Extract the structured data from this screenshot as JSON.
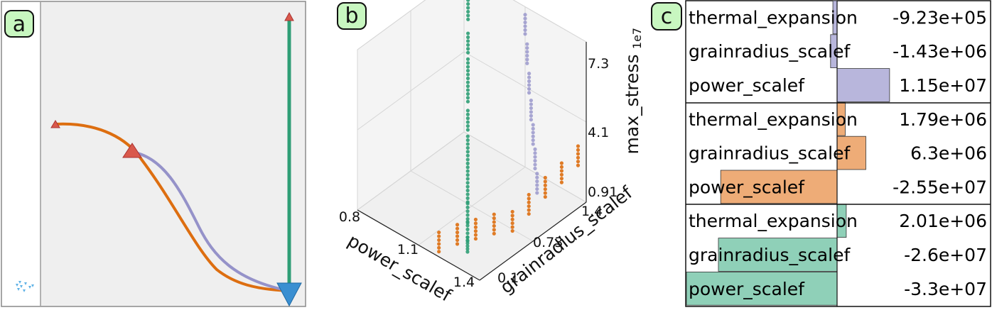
{
  "panel_labels": {
    "a": "a",
    "b": "b",
    "c": "c"
  },
  "colors": {
    "orange": "#dd6e10",
    "purple": "#9592c9",
    "green": "#2f9e76",
    "red": "#d9594c",
    "blue": "#3a8fd1",
    "bar_purple": "#b8b6dc",
    "bar_orange": "#eeac77",
    "bar_green": "#8fd0b8",
    "panel_bg": "#efefef"
  },
  "chart_data": [
    {
      "type": "line",
      "panel": "a",
      "series": [
        {
          "color": "orange",
          "start_marker": "small-red-triangle",
          "end_marker": "blue-down-triangle"
        },
        {
          "color": "purple",
          "start_marker": "large-red-triangle",
          "end_marker": "blue-down-triangle"
        },
        {
          "color": "green",
          "start_marker": "small-red-triangle",
          "end_marker": "blue-down-triangle"
        }
      ]
    },
    {
      "type": "scatter",
      "panel": "b",
      "xlabel": "power_scalef",
      "ylabel": "grainradius_scalef",
      "zlabel": "max_stress",
      "z_multiplier": "1e7",
      "x_ticks": [
        "0.8",
        "1.1",
        "1.4"
      ],
      "y_ticks": [
        "0.1",
        "0.73",
        "1.4"
      ],
      "z_ticks": [
        "0.91",
        "4.1",
        "7.3"
      ],
      "xlim": [
        0.8,
        1.4
      ],
      "ylim": [
        0.1,
        1.4
      ],
      "zlim": [
        0.91,
        7.3
      ],
      "grid": true,
      "series": [
        {
          "color": "green",
          "points": [
            [
              0.82,
              1.4,
              7.0
            ],
            [
              0.86,
              1.3,
              6.3
            ],
            [
              0.9,
              1.2,
              5.4
            ],
            [
              0.94,
              1.1,
              4.8
            ],
            [
              0.98,
              1.0,
              4.3
            ],
            [
              1.02,
              0.9,
              3.6
            ],
            [
              1.06,
              0.8,
              3.0
            ],
            [
              1.1,
              0.7,
              2.5
            ],
            [
              1.14,
              0.6,
              2.0
            ],
            [
              1.18,
              0.5,
              1.6
            ],
            [
              1.22,
              0.4,
              1.3
            ],
            [
              1.26,
              0.3,
              1.1
            ]
          ]
        },
        {
          "color": "purple",
          "points": [
            [
              1.1,
              1.4,
              6.6
            ],
            [
              1.15,
              1.3,
              5.9
            ],
            [
              1.2,
              1.2,
              5.2
            ],
            [
              1.25,
              1.1,
              4.6
            ],
            [
              1.3,
              1.0,
              4.1
            ],
            [
              1.35,
              0.9,
              3.6
            ],
            [
              1.4,
              0.8,
              3.1
            ]
          ]
        },
        {
          "color": "orange",
          "points": [
            [
              1.2,
              0.1,
              1.5
            ],
            [
              1.25,
              0.2,
              1.8
            ],
            [
              1.3,
              0.3,
              2.0
            ],
            [
              1.35,
              0.4,
              2.2
            ],
            [
              1.4,
              0.5,
              2.3
            ],
            [
              1.4,
              0.7,
              2.5
            ],
            [
              1.4,
              0.9,
              2.7
            ],
            [
              1.4,
              1.1,
              2.8
            ],
            [
              1.4,
              1.3,
              3.0
            ]
          ]
        }
      ]
    },
    {
      "type": "bar",
      "panel": "c",
      "groups": [
        {
          "color": "bar_purple",
          "items": [
            {
              "name": "thermal_expansion",
              "label": "-9.23e+05",
              "value": -923000
            },
            {
              "name": "grainradius_scalef",
              "label": "-1.43e+06",
              "value": -1430000
            },
            {
              "name": "power_scalef",
              "label": "1.15e+07",
              "value": 11500000
            }
          ]
        },
        {
          "color": "bar_orange",
          "items": [
            {
              "name": "thermal_expansion",
              "label": "1.79e+06",
              "value": 1790000
            },
            {
              "name": "grainradius_scalef",
              "label": "6.3e+06",
              "value": 6300000
            },
            {
              "name": "power_scalef",
              "label": "-2.55e+07",
              "value": -25500000
            }
          ]
        },
        {
          "color": "bar_green",
          "items": [
            {
              "name": "thermal_expansion",
              "label": "2.01e+06",
              "value": 2010000
            },
            {
              "name": "grainradius_scalef",
              "label": "-2.6e+07",
              "value": -26000000
            },
            {
              "name": "power_scalef",
              "label": "-3.3e+07",
              "value": -33000000
            }
          ]
        }
      ]
    }
  ]
}
